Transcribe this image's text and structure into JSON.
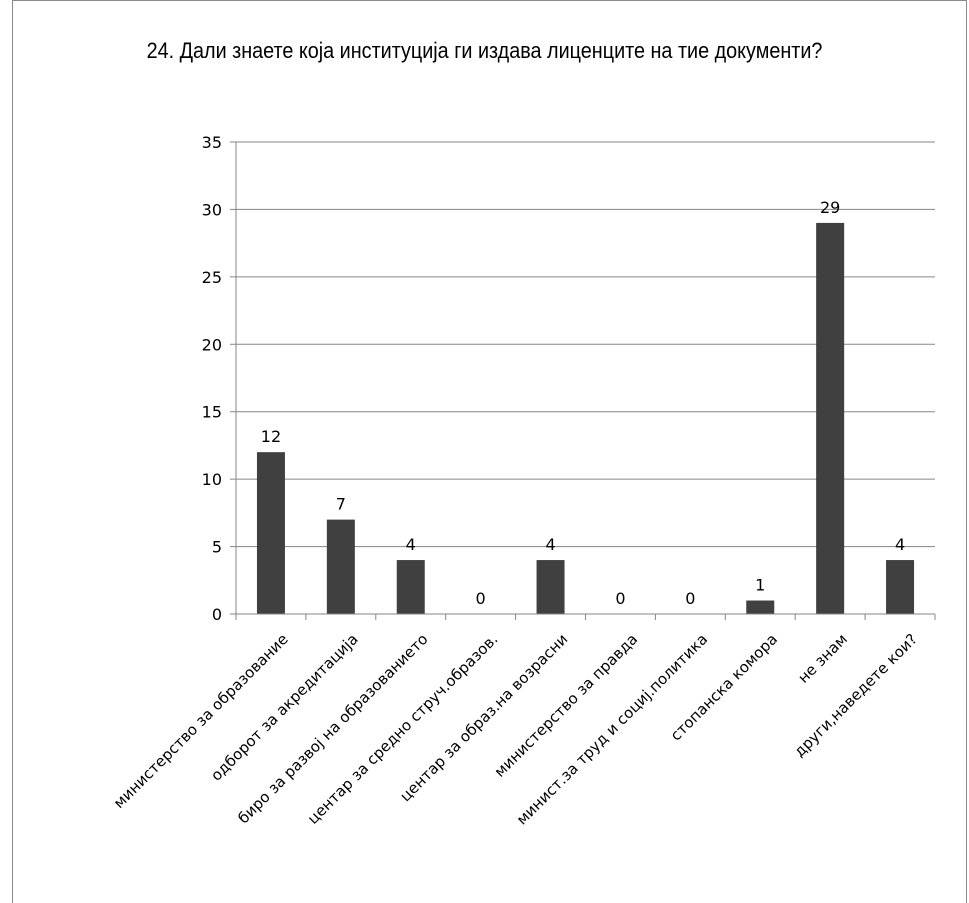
{
  "chart_data": {
    "type": "bar",
    "title": "24. Дали знаете која институција ги издава лиценците на тие документи?",
    "categories": [
      "министерство за образование",
      "одборот за акредитација",
      "биро за развој на образованието",
      "центар за средно струч.образов.",
      "центар за образ.на возрасни",
      "министерство за правда",
      "минист.за труд и социј.политика",
      "стопанска комора",
      "не знам",
      "други,наведете кои?"
    ],
    "values": [
      12,
      7,
      4,
      0,
      4,
      0,
      0,
      1,
      29,
      4
    ],
    "ylim": [
      0,
      35
    ],
    "yticks": [
      0,
      5,
      10,
      15,
      20,
      25,
      30,
      35
    ],
    "grid": true,
    "legend": "none",
    "bar_color": "#404040"
  }
}
